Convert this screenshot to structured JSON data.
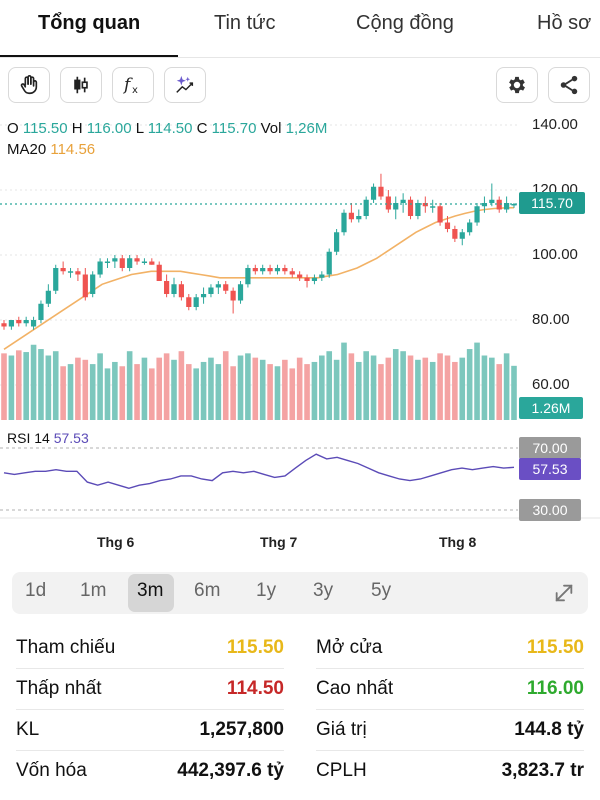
{
  "tabs": [
    {
      "label": "Tổng quan"
    },
    {
      "label": "Tin tức"
    },
    {
      "label": "Cộng đồng"
    },
    {
      "label": "Hồ sơ"
    }
  ],
  "toolbar": {
    "tools": [
      "hand-icon",
      "candlestick-icon",
      "fx-icon",
      "sparkle-chart-icon"
    ],
    "right_tools": [
      "gear-icon",
      "share-icon"
    ]
  },
  "legend": {
    "o_label": "O",
    "o_value": "115.50",
    "h_label": "H",
    "h_value": "116.00",
    "l_label": "L",
    "l_value": "114.50",
    "c_label": "C",
    "c_value": "115.70",
    "vol_label": "Vol",
    "vol_value": "1,26M",
    "ma_label": "MA20",
    "ma_value": "114.56",
    "rsi_label": "RSI 14",
    "rsi_value": "57.53"
  },
  "badges": {
    "price": "115.70",
    "volume": "1.26M",
    "rsi_70": "70.00",
    "rsi_current": "57.53",
    "rsi_30": "30.00"
  },
  "colors": {
    "up": "#2aa79b",
    "down": "#ef5350",
    "up_volume": "#7cc7bd",
    "down_volume": "#f4a3a3",
    "ma": "#f2b266",
    "rsi": "#5b4bb7",
    "badge_gray": "#9a9a9a",
    "reference": "#e8b81a",
    "low": "#c62828",
    "high": "#2eaa2e"
  },
  "chart_data": {
    "type": "candlestick",
    "y_ticks": [
      "140.00",
      "120.00",
      "100.00",
      "80.00",
      "60.00"
    ],
    "ylim": [
      57,
      142
    ],
    "x_ticks": [
      "Thg 6",
      "Thg 7",
      "Thg 8"
    ],
    "candles": [
      {
        "o": 79,
        "h": 80,
        "l": 77,
        "c": 78
      },
      {
        "o": 78,
        "h": 80,
        "l": 77,
        "c": 80
      },
      {
        "o": 80,
        "h": 81,
        "l": 78,
        "c": 79
      },
      {
        "o": 79,
        "h": 81,
        "l": 78,
        "c": 80
      },
      {
        "o": 78,
        "h": 81,
        "l": 77,
        "c": 80
      },
      {
        "o": 80,
        "h": 86,
        "l": 79,
        "c": 85
      },
      {
        "o": 85,
        "h": 91,
        "l": 84,
        "c": 89
      },
      {
        "o": 89,
        "h": 97,
        "l": 88,
        "c": 96
      },
      {
        "o": 96,
        "h": 98,
        "l": 94,
        "c": 95
      },
      {
        "o": 95,
        "h": 96,
        "l": 93,
        "c": 95
      },
      {
        "o": 95,
        "h": 96,
        "l": 92,
        "c": 94
      },
      {
        "o": 94,
        "h": 96,
        "l": 86,
        "c": 87
      },
      {
        "o": 88,
        "h": 95,
        "l": 87,
        "c": 94
      },
      {
        "o": 94,
        "h": 99,
        "l": 93,
        "c": 98
      },
      {
        "o": 98,
        "h": 99,
        "l": 96,
        "c": 98
      },
      {
        "o": 98,
        "h": 100,
        "l": 96,
        "c": 99
      },
      {
        "o": 99,
        "h": 100,
        "l": 95,
        "c": 96
      },
      {
        "o": 96,
        "h": 100,
        "l": 95,
        "c": 99
      },
      {
        "o": 99,
        "h": 100,
        "l": 97,
        "c": 98
      },
      {
        "o": 98,
        "h": 99,
        "l": 97,
        "c": 98
      },
      {
        "o": 98,
        "h": 99,
        "l": 97,
        "c": 97
      },
      {
        "o": 97,
        "h": 98,
        "l": 92,
        "c": 92
      },
      {
        "o": 92,
        "h": 94,
        "l": 87,
        "c": 88
      },
      {
        "o": 88,
        "h": 93,
        "l": 87,
        "c": 91
      },
      {
        "o": 91,
        "h": 92,
        "l": 86,
        "c": 87
      },
      {
        "o": 87,
        "h": 88,
        "l": 83,
        "c": 84
      },
      {
        "o": 84,
        "h": 88,
        "l": 83,
        "c": 87
      },
      {
        "o": 87,
        "h": 90,
        "l": 85,
        "c": 88
      },
      {
        "o": 88,
        "h": 91,
        "l": 87,
        "c": 90
      },
      {
        "o": 90,
        "h": 92,
        "l": 88,
        "c": 91
      },
      {
        "o": 91,
        "h": 92,
        "l": 88,
        "c": 89
      },
      {
        "o": 89,
        "h": 90,
        "l": 82,
        "c": 86
      },
      {
        "o": 86,
        "h": 92,
        "l": 85,
        "c": 91
      },
      {
        "o": 91,
        "h": 97,
        "l": 90,
        "c": 96
      },
      {
        "o": 96,
        "h": 97,
        "l": 94,
        "c": 95
      },
      {
        "o": 95,
        "h": 97,
        "l": 94,
        "c": 96
      },
      {
        "o": 96,
        "h": 97,
        "l": 94,
        "c": 95
      },
      {
        "o": 95,
        "h": 97,
        "l": 94,
        "c": 96
      },
      {
        "o": 96,
        "h": 97,
        "l": 94,
        "c": 95
      },
      {
        "o": 95,
        "h": 96,
        "l": 93,
        "c": 94
      },
      {
        "o": 94,
        "h": 95,
        "l": 92,
        "c": 93
      },
      {
        "o": 93,
        "h": 94,
        "l": 90,
        "c": 92
      },
      {
        "o": 92,
        "h": 94,
        "l": 91,
        "c": 93
      },
      {
        "o": 93,
        "h": 95,
        "l": 92,
        "c": 94
      },
      {
        "o": 94,
        "h": 102,
        "l": 93,
        "c": 101
      },
      {
        "o": 101,
        "h": 108,
        "l": 100,
        "c": 107
      },
      {
        "o": 107,
        "h": 114,
        "l": 106,
        "c": 113
      },
      {
        "o": 113,
        "h": 116,
        "l": 110,
        "c": 111
      },
      {
        "o": 111,
        "h": 114,
        "l": 110,
        "c": 112
      },
      {
        "o": 112,
        "h": 118,
        "l": 111,
        "c": 117
      },
      {
        "o": 117,
        "h": 122,
        "l": 116,
        "c": 121
      },
      {
        "o": 121,
        "h": 125,
        "l": 117,
        "c": 118
      },
      {
        "o": 118,
        "h": 120,
        "l": 113,
        "c": 114
      },
      {
        "o": 114,
        "h": 118,
        "l": 111,
        "c": 116
      },
      {
        "o": 116,
        "h": 119,
        "l": 113,
        "c": 117
      },
      {
        "o": 117,
        "h": 118,
        "l": 111,
        "c": 112
      },
      {
        "o": 112,
        "h": 117,
        "l": 111,
        "c": 116
      },
      {
        "o": 116,
        "h": 118,
        "l": 113,
        "c": 115
      },
      {
        "o": 115,
        "h": 117,
        "l": 113,
        "c": 115
      },
      {
        "o": 115,
        "h": 116,
        "l": 109,
        "c": 110
      },
      {
        "o": 110,
        "h": 112,
        "l": 107,
        "c": 108
      },
      {
        "o": 108,
        "h": 109,
        "l": 104,
        "c": 105
      },
      {
        "o": 105,
        "h": 108,
        "l": 103,
        "c": 107
      },
      {
        "o": 107,
        "h": 111,
        "l": 106,
        "c": 110
      },
      {
        "o": 110,
        "h": 116,
        "l": 109,
        "c": 115
      },
      {
        "o": 115,
        "h": 118,
        "l": 113,
        "c": 116
      },
      {
        "o": 116,
        "h": 122,
        "l": 115,
        "c": 117
      },
      {
        "o": 117,
        "h": 118,
        "l": 113,
        "c": 114
      },
      {
        "o": 114,
        "h": 118,
        "l": 113,
        "c": 116
      },
      {
        "o": 115.5,
        "h": 116,
        "l": 114.5,
        "c": 115.7
      }
    ],
    "volumes": [
      1.55,
      1.5,
      1.62,
      1.58,
      1.75,
      1.65,
      1.5,
      1.6,
      1.25,
      1.3,
      1.45,
      1.4,
      1.3,
      1.55,
      1.2,
      1.35,
      1.25,
      1.6,
      1.3,
      1.45,
      1.2,
      1.45,
      1.55,
      1.4,
      1.6,
      1.3,
      1.2,
      1.35,
      1.45,
      1.3,
      1.6,
      1.25,
      1.5,
      1.55,
      1.45,
      1.4,
      1.3,
      1.25,
      1.4,
      1.2,
      1.45,
      1.3,
      1.35,
      1.5,
      1.6,
      1.4,
      1.8,
      1.55,
      1.35,
      1.6,
      1.5,
      1.3,
      1.45,
      1.65,
      1.6,
      1.5,
      1.4,
      1.45,
      1.35,
      1.55,
      1.5,
      1.35,
      1.45,
      1.65,
      1.8,
      1.5,
      1.45,
      1.3,
      1.55,
      1.26
    ],
    "ma20": [
      71,
      73,
      75,
      77,
      79,
      81,
      83,
      85,
      87,
      89,
      91,
      92,
      93,
      94,
      94.5,
      95,
      95,
      95,
      95,
      94.5,
      94,
      93.5,
      93,
      93,
      93,
      93,
      93,
      93,
      93,
      93,
      93,
      93,
      93,
      93.5,
      94,
      95,
      96,
      97.5,
      99,
      101,
      103,
      105,
      107,
      108.5,
      110,
      111,
      112,
      112.8,
      113.5,
      114,
      114.3,
      114.5,
      114.56
    ],
    "rsi": [
      54,
      53,
      54,
      55,
      55,
      56,
      55,
      55,
      48,
      46,
      48,
      46,
      44,
      46,
      47,
      49,
      50,
      52,
      52,
      50,
      49,
      54,
      55,
      54,
      55,
      53,
      51,
      52,
      57,
      62,
      66,
      63,
      64,
      62,
      60,
      57,
      54,
      52,
      50,
      49,
      50,
      52,
      54,
      56,
      57,
      56,
      57,
      58,
      57,
      57.53
    ],
    "rsi_levels": [
      70,
      30
    ]
  },
  "ranges": {
    "options": [
      "1d",
      "1m",
      "3m",
      "6m",
      "1y",
      "3y",
      "5y"
    ],
    "selected": "3m"
  },
  "stats": {
    "left": [
      {
        "label": "Tham chiếu",
        "value": "115.50"
      },
      {
        "label": "Thấp nhất",
        "value": "114.50"
      },
      {
        "label": "KL",
        "value": "1,257,800"
      },
      {
        "label": "Vốn hóa",
        "value": "442,397.6 tỷ"
      }
    ],
    "right": [
      {
        "label": "Mở cửa",
        "value": "115.50"
      },
      {
        "label": "Cao nhất",
        "value": "116.00"
      },
      {
        "label": "Giá trị",
        "value": "144.8 tỷ"
      },
      {
        "label": "CPLH",
        "value": "3,823.7 tr"
      }
    ]
  }
}
